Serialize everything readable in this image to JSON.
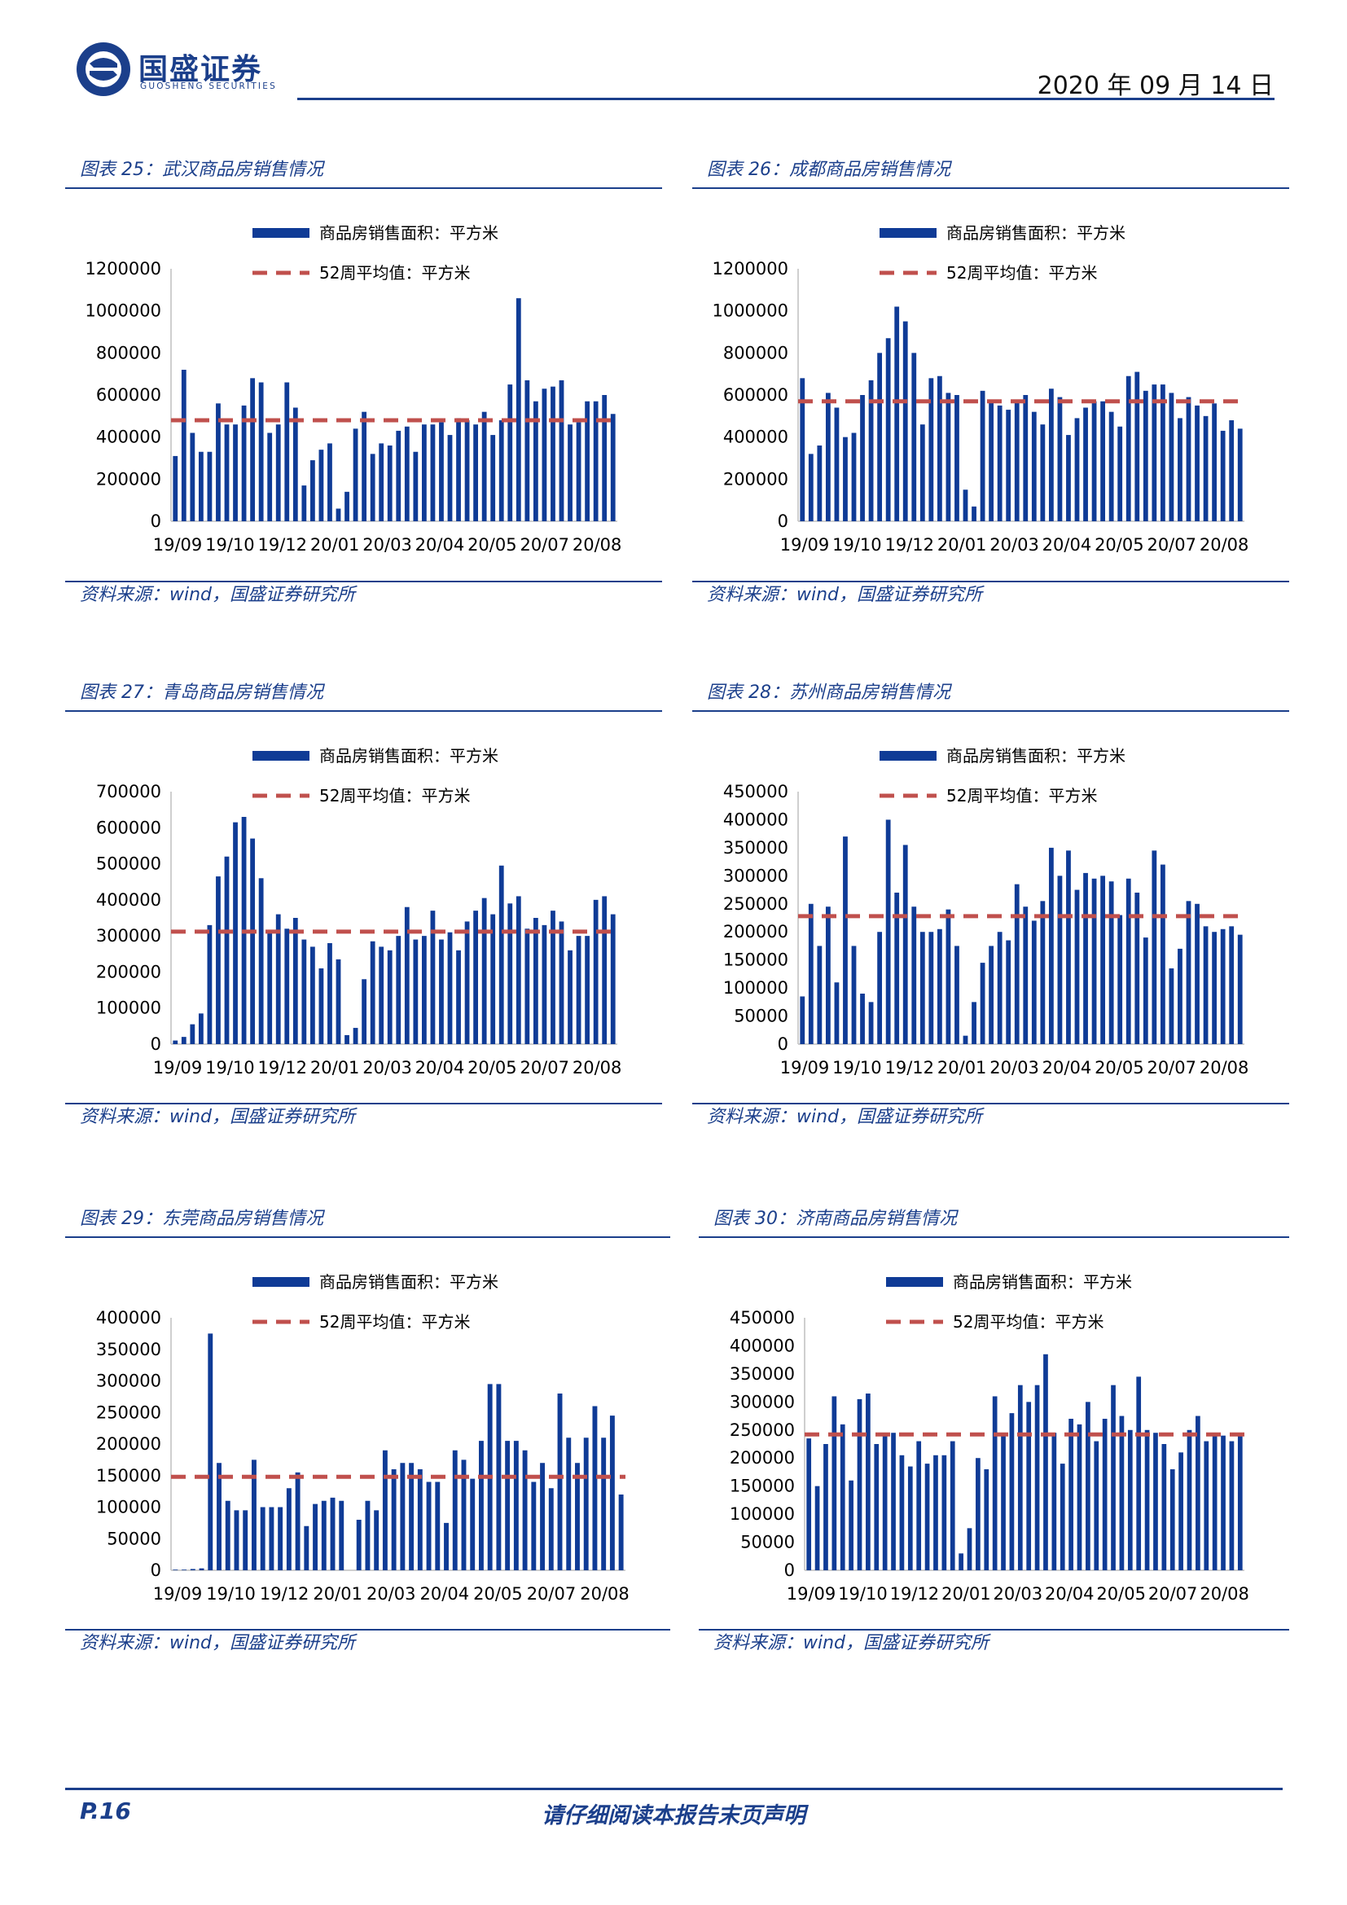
{
  "header": {
    "brand": "国盛证券",
    "brand_en": "GUOSHENG SECURITIES",
    "date": "2020 年 09 月 14 日"
  },
  "footer": {
    "page": "P.16",
    "notice": "请仔细阅读本报告末页声明"
  },
  "colors": {
    "bar": "#0f3b96",
    "avg": "#c0504d",
    "rule": "#1b3f8b"
  },
  "panels": [
    {
      "title": "图表 25：武汉商品房销售情况",
      "source": "资料来源：wind，国盛证券研究所"
    },
    {
      "title": "图表 26：成都商品房销售情况",
      "source": "资料来源：wind，国盛证券研究所"
    },
    {
      "title": "图表 27：青岛商品房销售情况",
      "source": "资料来源：wind，国盛证券研究所"
    },
    {
      "title": "图表 28：苏州商品房销售情况",
      "source": "资料来源：wind，国盛证券研究所"
    },
    {
      "title": "图表 29：东莞商品房销售情况",
      "source": "资料来源：wind，国盛证券研究所"
    },
    {
      "title": "图表 30：济南商品房销售情况",
      "source": "资料来源：wind，国盛证券研究所"
    }
  ],
  "chart_data": [
    {
      "type": "bar",
      "title": "武汉商品房销售情况",
      "x_tick_labels": [
        "19/09",
        "19/10",
        "19/12",
        "20/01",
        "20/03",
        "20/04",
        "20/05",
        "20/07",
        "20/08"
      ],
      "ylim": [
        0,
        1200000
      ],
      "y_ticks": [
        0,
        200000,
        400000,
        600000,
        800000,
        1000000,
        1200000
      ],
      "legend_position": "top-center",
      "series": [
        {
          "name": "商品房销售面积：平方米",
          "kind": "bar",
          "values": [
            310000,
            720000,
            420000,
            330000,
            330000,
            560000,
            460000,
            460000,
            550000,
            680000,
            660000,
            420000,
            460000,
            660000,
            540000,
            170000,
            290000,
            340000,
            370000,
            60000,
            140000,
            440000,
            520000,
            320000,
            370000,
            360000,
            430000,
            450000,
            330000,
            460000,
            460000,
            470000,
            410000,
            490000,
            480000,
            460000,
            520000,
            410000,
            480000,
            650000,
            1060000,
            670000,
            570000,
            630000,
            640000,
            670000,
            460000,
            470000,
            570000,
            570000,
            600000,
            510000
          ]
        },
        {
          "name": "52周平均值：平方米",
          "kind": "line",
          "value": 480000
        }
      ]
    },
    {
      "type": "bar",
      "title": "成都商品房销售情况",
      "x_tick_labels": [
        "19/09",
        "19/10",
        "19/12",
        "20/01",
        "20/03",
        "20/04",
        "20/05",
        "20/07",
        "20/08"
      ],
      "ylim": [
        0,
        1200000
      ],
      "y_ticks": [
        0,
        200000,
        400000,
        600000,
        800000,
        1000000,
        1200000
      ],
      "legend_position": "top-center",
      "series": [
        {
          "name": "商品房销售面积：平方米",
          "kind": "bar",
          "values": [
            680000,
            320000,
            360000,
            610000,
            540000,
            400000,
            420000,
            600000,
            670000,
            800000,
            870000,
            1020000,
            950000,
            800000,
            460000,
            680000,
            690000,
            610000,
            600000,
            150000,
            70000,
            620000,
            570000,
            550000,
            530000,
            570000,
            600000,
            520000,
            460000,
            630000,
            590000,
            410000,
            490000,
            540000,
            570000,
            570000,
            520000,
            450000,
            690000,
            710000,
            620000,
            650000,
            650000,
            610000,
            490000,
            590000,
            550000,
            500000,
            560000,
            430000,
            480000,
            440000
          ]
        },
        {
          "name": "52周平均值：平方米",
          "kind": "line",
          "value": 570000
        }
      ]
    },
    {
      "type": "bar",
      "title": "青岛商品房销售情况",
      "x_tick_labels": [
        "19/09",
        "19/10",
        "19/12",
        "20/01",
        "20/03",
        "20/04",
        "20/05",
        "20/07",
        "20/08"
      ],
      "ylim": [
        0,
        700000
      ],
      "y_ticks": [
        0,
        100000,
        200000,
        300000,
        400000,
        500000,
        600000,
        700000
      ],
      "legend_position": "top-center",
      "series": [
        {
          "name": "商品房销售面积：平方米",
          "kind": "bar",
          "values": [
            10000,
            20000,
            55000,
            85000,
            330000,
            465000,
            520000,
            615000,
            630000,
            570000,
            460000,
            310000,
            360000,
            320000,
            350000,
            290000,
            270000,
            210000,
            280000,
            235000,
            25000,
            45000,
            180000,
            285000,
            270000,
            260000,
            300000,
            380000,
            290000,
            300000,
            370000,
            290000,
            310000,
            260000,
            340000,
            370000,
            405000,
            360000,
            495000,
            390000,
            410000,
            320000,
            350000,
            330000,
            370000,
            340000,
            260000,
            300000,
            300000,
            400000,
            410000,
            360000
          ]
        },
        {
          "name": "52周平均值：平方米",
          "kind": "line",
          "value": 312000
        }
      ]
    },
    {
      "type": "bar",
      "title": "苏州商品房销售情况",
      "x_tick_labels": [
        "19/09",
        "19/10",
        "19/12",
        "20/01",
        "20/03",
        "20/04",
        "20/05",
        "20/07",
        "20/08"
      ],
      "ylim": [
        0,
        450000
      ],
      "y_ticks": [
        0,
        50000,
        100000,
        150000,
        200000,
        250000,
        300000,
        350000,
        400000,
        450000
      ],
      "legend_position": "top-center",
      "series": [
        {
          "name": "商品房销售面积：平方米",
          "kind": "bar",
          "values": [
            85000,
            250000,
            175000,
            245000,
            110000,
            370000,
            175000,
            90000,
            75000,
            200000,
            400000,
            270000,
            355000,
            245000,
            200000,
            200000,
            205000,
            240000,
            175000,
            15000,
            75000,
            145000,
            175000,
            200000,
            185000,
            285000,
            245000,
            220000,
            255000,
            350000,
            300000,
            345000,
            275000,
            305000,
            295000,
            300000,
            290000,
            230000,
            295000,
            270000,
            190000,
            345000,
            320000,
            135000,
            170000,
            255000,
            250000,
            210000,
            200000,
            205000,
            210000,
            195000
          ]
        },
        {
          "name": "52周平均值：平方米",
          "kind": "line",
          "value": 228000
        }
      ]
    },
    {
      "type": "bar",
      "title": "东莞商品房销售情况",
      "x_tick_labels": [
        "19/09",
        "19/10",
        "19/12",
        "20/01",
        "20/03",
        "20/04",
        "20/05",
        "20/07",
        "20/08"
      ],
      "ylim": [
        0,
        400000
      ],
      "y_ticks": [
        0,
        50000,
        100000,
        150000,
        200000,
        250000,
        300000,
        350000,
        400000
      ],
      "legend_position": "top-center",
      "series": [
        {
          "name": "商品房销售面积：平方米",
          "kind": "bar",
          "values": [
            1000,
            1000,
            2000,
            3000,
            375000,
            170000,
            110000,
            95000,
            95000,
            175000,
            100000,
            100000,
            100000,
            130000,
            155000,
            70000,
            105000,
            110000,
            115000,
            110000,
            0,
            80000,
            110000,
            95000,
            190000,
            160000,
            170000,
            170000,
            160000,
            140000,
            140000,
            75000,
            190000,
            175000,
            145000,
            205000,
            295000,
            295000,
            205000,
            205000,
            190000,
            140000,
            170000,
            130000,
            280000,
            210000,
            170000,
            210000,
            260000,
            210000,
            245000,
            120000
          ]
        },
        {
          "name": "52周平均值：平方米",
          "kind": "line",
          "value": 148000
        }
      ]
    },
    {
      "type": "bar",
      "title": "济南商品房销售情况",
      "x_tick_labels": [
        "19/09",
        "19/10",
        "19/12",
        "20/01",
        "20/03",
        "20/04",
        "20/05",
        "20/07",
        "20/08"
      ],
      "ylim": [
        0,
        450000
      ],
      "y_ticks": [
        0,
        50000,
        100000,
        150000,
        200000,
        250000,
        300000,
        350000,
        400000,
        450000
      ],
      "legend_position": "top-center",
      "series": [
        {
          "name": "商品房销售面积：平方米",
          "kind": "bar",
          "values": [
            235000,
            150000,
            225000,
            310000,
            260000,
            160000,
            305000,
            315000,
            225000,
            245000,
            245000,
            205000,
            185000,
            230000,
            190000,
            205000,
            205000,
            230000,
            30000,
            75000,
            200000,
            180000,
            310000,
            245000,
            280000,
            330000,
            300000,
            330000,
            385000,
            245000,
            190000,
            270000,
            260000,
            300000,
            230000,
            270000,
            330000,
            275000,
            250000,
            345000,
            250000,
            245000,
            225000,
            180000,
            210000,
            250000,
            275000,
            230000,
            245000,
            240000,
            230000,
            245000
          ]
        },
        {
          "name": "52周平均值：平方米",
          "kind": "line",
          "value": 242000
        }
      ]
    }
  ]
}
